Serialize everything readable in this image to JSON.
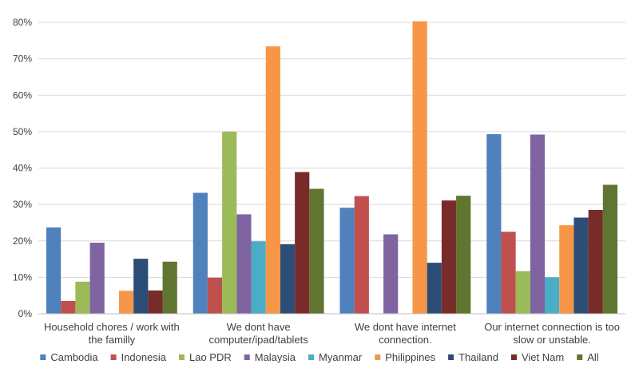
{
  "chart_data": {
    "type": "bar",
    "title": "",
    "xlabel": "",
    "ylabel": "",
    "ylim": [
      0,
      80
    ],
    "y_ticks": [
      "0%",
      "10%",
      "20%",
      "30%",
      "40%",
      "50%",
      "60%",
      "70%",
      "80%"
    ],
    "grid": true,
    "legend_position": "bottom",
    "categories": [
      [
        "Household chores / work with",
        "the familly"
      ],
      [
        "We dont have",
        "computer/ipad/tablets"
      ],
      [
        "We dont have internet",
        "connection."
      ],
      [
        "Our internet connection is too",
        "slow or unstable."
      ]
    ],
    "series": [
      {
        "name": "Cambodia",
        "color": "#4f81bd",
        "values": [
          23.7,
          33.2,
          29.1,
          49.3
        ]
      },
      {
        "name": "Indonesia",
        "color": "#c0504d",
        "values": [
          3.5,
          9.9,
          32.3,
          22.5
        ]
      },
      {
        "name": "Lao PDR",
        "color": "#9bbb59",
        "values": [
          8.8,
          50.0,
          0,
          11.7
        ]
      },
      {
        "name": "Malaysia",
        "color": "#8064a2",
        "values": [
          19.5,
          27.3,
          21.8,
          49.2
        ]
      },
      {
        "name": "Myanmar",
        "color": "#4bacc6",
        "values": [
          0,
          19.9,
          0,
          10.0
        ]
      },
      {
        "name": "Philippines",
        "color": "#f79646",
        "values": [
          6.3,
          73.4,
          80.3,
          24.3
        ]
      },
      {
        "name": "Thailand",
        "color": "#2c4d75",
        "values": [
          15.1,
          19.1,
          14.0,
          26.4
        ]
      },
      {
        "name": "Viet Nam",
        "color": "#772c2a",
        "values": [
          6.4,
          38.9,
          31.1,
          28.5
        ]
      },
      {
        "name": "All",
        "color": "#5f7530",
        "values": [
          14.3,
          34.3,
          32.4,
          35.4
        ]
      }
    ]
  }
}
